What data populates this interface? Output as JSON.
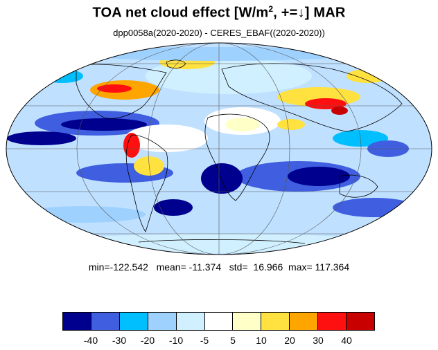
{
  "title": {
    "prefix": "TOA net cloud effect [W/m",
    "superscript": "2",
    "suffix": ", +=↓]  MAR"
  },
  "subtitle": "dpp0058a(2020-2020) - CERES_EBAF((2020-2020))",
  "stats": {
    "min_label": "min=",
    "min": "-122.542",
    "mean_label": "mean=",
    "mean": "-11.374",
    "std_label": "std=",
    "std": "16.966",
    "max_label": "max=",
    "max": "117.364"
  },
  "colorbar": {
    "colors": [
      "#00008f",
      "#3f5fe0",
      "#00bfff",
      "#9fd1ff",
      "#d1f0ff",
      "#ffffff",
      "#ffffc8",
      "#ffe140",
      "#ffa500",
      "#ff1010",
      "#c80000"
    ],
    "tick_labels": [
      "-40",
      "-30",
      "-20",
      "-10",
      "-5",
      "5",
      "10",
      "20",
      "30",
      "40"
    ]
  },
  "map": {
    "projection": "Mollweide",
    "ocean_base_color": "#bfe0ff"
  }
}
